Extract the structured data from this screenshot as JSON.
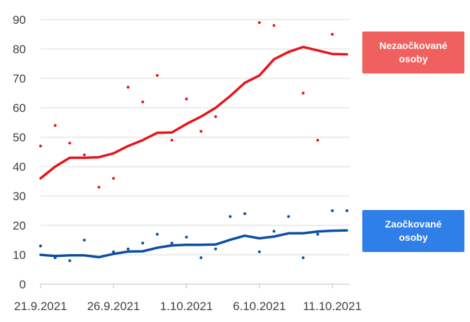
{
  "chart_data": {
    "type": "line",
    "x": [
      "21.9.2021",
      "22.9.2021",
      "23.9.2021",
      "24.9.2021",
      "25.9.2021",
      "26.9.2021",
      "27.9.2021",
      "28.9.2021",
      "29.9.2021",
      "30.9.2021",
      "1.10.2021",
      "2.10.2021",
      "3.10.2021",
      "4.10.2021",
      "5.10.2021",
      "6.10.2021",
      "7.10.2021",
      "8.10.2021",
      "9.10.2021",
      "10.10.2021",
      "11.10.2021",
      "12.10.2021"
    ],
    "x_tick_labels": [
      "21.9.2021",
      "26.9.2021",
      "1.10.2021",
      "6.10.2021",
      "11.10.2021"
    ],
    "ylim": [
      0,
      90
    ],
    "y_ticks": [
      0,
      10,
      20,
      30,
      40,
      50,
      60,
      70,
      80,
      90
    ],
    "grid": "horizontal",
    "series": [
      {
        "name": "Nezaočkované osoby",
        "color": "#e8141b",
        "trend": [
          36,
          40,
          43,
          43,
          43.2,
          44.5,
          47,
          49,
          51.5,
          51.6,
          54.5,
          57,
          60,
          64,
          68.5,
          71,
          76.5,
          79,
          80.7,
          79.5,
          78.3,
          78.2
        ],
        "points": [
          47,
          54,
          48,
          44,
          33,
          36,
          67,
          62,
          71,
          49,
          63,
          52,
          57,
          null,
          null,
          89,
          88,
          79,
          65,
          49,
          85,
          null
        ]
      },
      {
        "name": "Zaočkované osoby",
        "color": "#0b4ea2",
        "trend": [
          10,
          9.6,
          9.8,
          9.8,
          9.2,
          10.3,
          11.1,
          11.2,
          12.4,
          13.2,
          13.4,
          13.4,
          13.5,
          15.1,
          16.5,
          15.6,
          16.2,
          17.3,
          17.3,
          17.9,
          18.2,
          18.3
        ],
        "points": [
          13,
          9,
          8,
          15,
          null,
          11,
          12,
          14,
          17,
          14,
          16,
          9,
          12,
          23,
          24,
          11,
          18,
          23,
          9,
          17,
          25,
          25
        ]
      }
    ]
  },
  "legend": {
    "unvaccinated_label": "Nezaočkované osoby",
    "vaccinated_label": "Zaočkované osoby",
    "unvaccinated_color": "#f0605f",
    "vaccinated_color": "#2f7fe8"
  }
}
